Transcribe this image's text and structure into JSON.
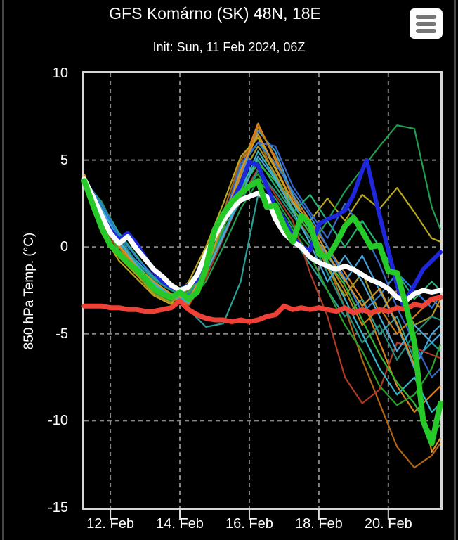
{
  "header": {
    "title": "GFS Komárno (SK) 48N, 18E",
    "subtitle": "Init: Sun, 11 Feb 2024, 06Z",
    "menu_icon": "hamburger-icon"
  },
  "chart_data": {
    "type": "line",
    "title": "GFS Komárno (SK) 48N, 18E",
    "subtitle": "Init: Sun, 11 Feb 2024, 06Z",
    "ylabel": "850 hPa Temp. (°C)",
    "xlabel": "",
    "x_unit": "forecast hours from init (11 Feb 2024 06Z)",
    "x_range": [
      0,
      246
    ],
    "y_range": [
      -15,
      10
    ],
    "grid_color": "#858585",
    "tick_color": "#e0e0e0",
    "y_ticks": [
      {
        "value": 10,
        "label": "10",
        "grid": false
      },
      {
        "value": 5,
        "label": "5",
        "grid": true
      },
      {
        "value": 0,
        "label": "0",
        "grid": true
      },
      {
        "value": -5,
        "label": "-5",
        "grid": true
      },
      {
        "value": -10,
        "label": "-10",
        "grid": true
      },
      {
        "value": -15,
        "label": "-15",
        "grid": false
      }
    ],
    "x_ticks": [
      {
        "hour": 18,
        "label": "12. Feb"
      },
      {
        "hour": 66,
        "label": "14. Feb"
      },
      {
        "hour": 114,
        "label": "16. Feb"
      },
      {
        "hour": 162,
        "label": "18. Feb"
      },
      {
        "hour": 210,
        "label": "20. Feb"
      }
    ],
    "default_hours": [
      0,
      6,
      12,
      18,
      24,
      30,
      36,
      42,
      48,
      54,
      60,
      66,
      72,
      78,
      84,
      90,
      96,
      102,
      108,
      114,
      120,
      126,
      132,
      138,
      144,
      150,
      156,
      162,
      168,
      174,
      180,
      186,
      192,
      198,
      204,
      210,
      216,
      222,
      228,
      234,
      240,
      246
    ],
    "main_series": [
      {
        "name": "red-thick",
        "color": "#ef4136",
        "width": 7,
        "values": [
          -3.4,
          -3.4,
          -3.4,
          -3.5,
          -3.5,
          -3.6,
          -3.6,
          -3.7,
          -3.7,
          -3.6,
          -3.5,
          -3.1,
          -3.6,
          -3.9,
          -4.1,
          -4.2,
          -4.2,
          -4.3,
          -4.2,
          -4.3,
          -4.2,
          -4.0,
          -3.9,
          -3.4,
          -3.6,
          -3.5,
          -3.6,
          -3.5,
          -3.6,
          -3.7,
          -3.5,
          -3.8,
          -3.6,
          -3.8,
          -3.6,
          -3.7,
          -3.5,
          -3.6,
          -3.3,
          -3.4,
          -3.0,
          -2.9
        ]
      },
      {
        "name": "blue-thick",
        "color": "#1f27dd",
        "width": 6,
        "hours": [
          0,
          6,
          12,
          18,
          24,
          30,
          36,
          42,
          48,
          54,
          60,
          66,
          72,
          78,
          84,
          90,
          96,
          102,
          108,
          114,
          120,
          126,
          132,
          138,
          144,
          150,
          156,
          162,
          168,
          174,
          180,
          186,
          192,
          195,
          201,
          207,
          210,
          216,
          220,
          228,
          234,
          240,
          246
        ],
        "values": [
          3.9,
          3.0,
          1.8,
          1.0,
          0.4,
          0.8,
          0.2,
          -0.6,
          -1.4,
          -2.0,
          -2.3,
          -2.5,
          -2.2,
          -1.9,
          -0.9,
          0.6,
          1.6,
          2.6,
          3.6,
          4.9,
          4.7,
          3.5,
          2.3,
          1.6,
          0.6,
          0.0,
          -0.2,
          1.3,
          1.6,
          1.8,
          2.1,
          3.0,
          4.4,
          5.0,
          2.8,
          0.8,
          -0.2,
          -2.2,
          -3.3,
          -2.2,
          -1.3,
          -0.8,
          -0.3
        ]
      },
      {
        "name": "white-thick",
        "color": "#ffffff",
        "width": 7,
        "values": [
          3.9,
          2.9,
          1.8,
          0.8,
          0.2,
          0.6,
          -0.1,
          -0.7,
          -1.3,
          -1.7,
          -2.2,
          -2.5,
          -2.3,
          -1.6,
          -0.4,
          0.6,
          1.5,
          2.2,
          2.7,
          2.9,
          3.1,
          2.9,
          1.6,
          0.8,
          0.3,
          0.0,
          -0.6,
          -0.9,
          -1.1,
          -1.3,
          -1.1,
          -1.3,
          -1.6,
          -1.9,
          -2.1,
          -2.4,
          -2.9,
          -3.1,
          -2.7,
          -2.5,
          -2.6,
          -2.5
        ]
      },
      {
        "name": "green-thick",
        "color": "#25c928",
        "width": 8,
        "values": [
          3.8,
          2.4,
          1.1,
          0.1,
          -0.4,
          -0.9,
          -1.3,
          -1.8,
          -2.4,
          -2.7,
          -2.9,
          -2.6,
          -3.0,
          -2.6,
          -1.2,
          1.0,
          1.9,
          2.6,
          3.1,
          3.5,
          3.8,
          2.3,
          2.4,
          1.2,
          0.3,
          1.8,
          1.3,
          -0.4,
          -0.6,
          0.2,
          1.2,
          1.7,
          0.9,
          0.0,
          0.1,
          -1.4,
          -1.5,
          -3.3,
          -5.5,
          -10.0,
          -11.3,
          -9.0
        ]
      }
    ],
    "member_hours": [
      0,
      12,
      24,
      36,
      48,
      60,
      72,
      84,
      96,
      108,
      120,
      132,
      144,
      156,
      168,
      180,
      192,
      204,
      216,
      228,
      240,
      246
    ],
    "members": [
      {
        "color": "#d9821e",
        "values": [
          4.2,
          1.5,
          -0.2,
          -1.0,
          -2.2,
          -2.8,
          -3.2,
          -1.0,
          1.5,
          4.5,
          7.1,
          5.0,
          3.0,
          1.5,
          0.0,
          -1.5,
          -3.0,
          -5.5,
          -8.0,
          -9.5,
          -8.5,
          -8.0
        ]
      },
      {
        "color": "#b06514",
        "values": [
          3.9,
          1.2,
          -0.5,
          -1.5,
          -2.5,
          -3.0,
          -2.5,
          -0.5,
          2.0,
          5.0,
          6.3,
          4.0,
          2.0,
          0.5,
          -1.0,
          -3.5,
          -6.5,
          -9.0,
          -11.5,
          -12.7,
          -12.0,
          -11.3
        ]
      },
      {
        "color": "#b9a81f",
        "values": [
          3.8,
          0.8,
          -0.8,
          -1.8,
          -2.8,
          -3.3,
          -2.0,
          0.0,
          2.5,
          5.2,
          6.3,
          4.5,
          2.5,
          1.5,
          2.8,
          1.5,
          3.0,
          2.2,
          3.4,
          2.0,
          0.5,
          0.3
        ]
      },
      {
        "color": "#2aa198",
        "values": [
          3.7,
          2.6,
          0.4,
          -1.3,
          -2.1,
          -2.8,
          -3.6,
          -4.6,
          -4.4,
          -2.0,
          3.0,
          2.0,
          0.5,
          -1.0,
          -2.5,
          -4.0,
          -3.0,
          -5.0,
          -4.0,
          -6.5,
          -5.5,
          -6.0
        ]
      },
      {
        "color": "#3f9fd9",
        "values": [
          3.9,
          2.0,
          0.2,
          -0.8,
          -1.8,
          -2.4,
          -2.8,
          -1.2,
          1.0,
          4.0,
          6.7,
          5.5,
          3.0,
          1.0,
          -0.5,
          -2.0,
          -0.5,
          -2.5,
          -4.5,
          -7.0,
          -5.0,
          -4.5
        ]
      },
      {
        "color": "#3566c9",
        "values": [
          4.0,
          2.2,
          0.6,
          0.2,
          -1.5,
          -2.2,
          -2.6,
          -0.8,
          1.5,
          4.8,
          6.0,
          5.8,
          3.5,
          2.0,
          0.5,
          2.5,
          1.0,
          -1.0,
          -3.5,
          -5.5,
          -7.5,
          -7.0
        ]
      },
      {
        "color": "#2ca02c",
        "values": [
          3.8,
          1.0,
          -0.5,
          -1.5,
          -2.6,
          -3.1,
          -2.8,
          -1.5,
          0.8,
          3.0,
          4.2,
          2.5,
          1.0,
          -0.5,
          -2.5,
          -4.5,
          -6.0,
          -8.0,
          -9.1,
          -8.5,
          -7.0,
          -5.6
        ]
      },
      {
        "color": "#1f9e4e",
        "values": [
          3.7,
          1.8,
          0.0,
          -1.0,
          -2.2,
          -2.9,
          -3.2,
          -2.0,
          0.0,
          2.2,
          3.8,
          2.8,
          1.2,
          0.0,
          1.5,
          3.2,
          4.5,
          5.8,
          7.0,
          6.8,
          2.3,
          1.0
        ]
      },
      {
        "color": "#22b573",
        "values": [
          3.8,
          2.5,
          0.8,
          -0.5,
          -1.8,
          -2.5,
          -2.2,
          -1.0,
          1.2,
          3.5,
          5.0,
          3.5,
          2.0,
          3.0,
          1.5,
          0.0,
          1.5,
          0.0,
          -1.5,
          -3.0,
          -2.0,
          -2.5
        ]
      },
      {
        "color": "#b03a24",
        "values": [
          3.9,
          1.4,
          -0.3,
          -1.2,
          -2.4,
          -3.0,
          -3.4,
          -1.8,
          0.5,
          2.8,
          4.5,
          3.0,
          1.5,
          -1.5,
          -4.0,
          -7.5,
          -9.0,
          -8.2,
          -5.5,
          -5.8,
          -6.2,
          -6.4
        ]
      },
      {
        "color": "#35b6c9",
        "values": [
          3.8,
          2.2,
          0.4,
          -1.0,
          -2.1,
          -2.7,
          -3.1,
          -1.4,
          0.7,
          3.2,
          5.5,
          4.0,
          2.5,
          1.0,
          -1.0,
          -3.0,
          -5.0,
          -7.0,
          -8.5,
          -7.5,
          -9.5,
          -9.0
        ]
      },
      {
        "color": "#c87f1b",
        "values": [
          4.0,
          1.8,
          0.0,
          -1.3,
          -2.3,
          -2.9,
          -3.3,
          -1.6,
          1.0,
          4.2,
          6.9,
          5.2,
          2.8,
          1.2,
          -0.8,
          -2.5,
          -4.5,
          -3.5,
          -5.0,
          -4.0,
          -3.0,
          -3.5
        ]
      },
      {
        "color": "#a89a20",
        "values": [
          3.7,
          1.1,
          -0.6,
          -1.6,
          -2.7,
          -3.2,
          -2.4,
          -0.6,
          1.8,
          4.0,
          5.8,
          4.2,
          2.2,
          0.8,
          -1.2,
          -2.8,
          -1.5,
          -3.8,
          -2.5,
          -4.5,
          -4.0,
          -3.0
        ]
      },
      {
        "color": "#1f8f7f",
        "values": [
          3.8,
          2.6,
          0.6,
          -0.9,
          -1.9,
          -2.5,
          -2.9,
          -1.3,
          0.9,
          2.6,
          4.4,
          3.2,
          1.8,
          0.5,
          -1.5,
          -3.5,
          -5.5,
          -4.5,
          -6.5,
          -5.0,
          -4.0,
          -4.2
        ]
      },
      {
        "color": "#2e7fd9",
        "values": [
          3.9,
          2.4,
          0.7,
          -0.6,
          -1.7,
          -2.3,
          -2.7,
          -1.1,
          1.3,
          4.6,
          6.0,
          4.8,
          3.2,
          1.8,
          0.0,
          -1.8,
          -3.8,
          -2.8,
          -1.5,
          -2.5,
          -3.5,
          -2.8
        ]
      },
      {
        "color": "#33b733",
        "values": [
          3.8,
          1.6,
          -0.2,
          -1.4,
          -2.5,
          -3.0,
          -2.6,
          -1.2,
          1.1,
          3.3,
          4.8,
          3.8,
          2.2,
          0.8,
          -0.8,
          -2.2,
          -4.2,
          -6.2,
          -7.8,
          -9.0,
          -10.8,
          -10.2
        ]
      },
      {
        "color": "#d9941f",
        "values": [
          4.1,
          1.9,
          0.1,
          -1.1,
          -2.0,
          -2.7,
          -3.0,
          -1.3,
          1.4,
          4.4,
          6.5,
          4.6,
          2.6,
          1.4,
          -0.4,
          -1.9,
          -3.4,
          -2.4,
          -4.4,
          -6.8,
          -11.8,
          -11.0
        ]
      },
      {
        "color": "#49a8d8",
        "values": [
          3.8,
          2.1,
          0.3,
          -1.0,
          -2.2,
          -2.8,
          -3.2,
          -1.5,
          0.6,
          2.9,
          5.2,
          3.9,
          2.1,
          0.2,
          -2.0,
          -0.5,
          -2.0,
          -4.0,
          -6.0,
          -4.5,
          -5.5,
          -5.0
        ]
      }
    ]
  }
}
